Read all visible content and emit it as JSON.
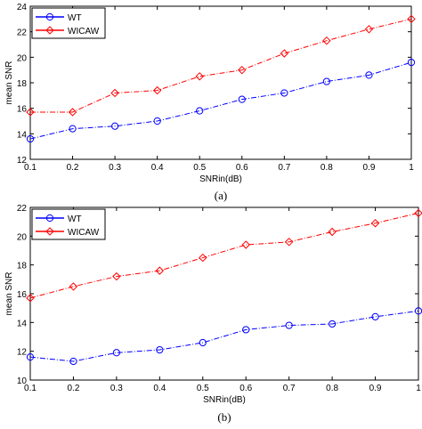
{
  "chart_data": [
    {
      "type": "line",
      "panel_label": "(a)",
      "xlabel": "SNRin(dB)",
      "ylabel": "mean SNR",
      "xlim": [
        0.1,
        1
      ],
      "ylim": [
        12,
        24
      ],
      "x_ticks": [
        "0.1",
        "0.2",
        "0.3",
        "0.4",
        "0.5",
        "0.6",
        "0.7",
        "0.8",
        "0.9",
        "1"
      ],
      "y_ticks": [
        "12",
        "14",
        "16",
        "18",
        "20",
        "22",
        "24"
      ],
      "x": [
        0.1,
        0.2,
        0.3,
        0.4,
        0.5,
        0.6,
        0.7,
        0.8,
        0.9,
        1.0
      ],
      "legend_position": "top-left",
      "series": [
        {
          "name": "WT",
          "color": "#0000ff",
          "marker": "circle",
          "line": "dash-dot",
          "values": [
            13.6,
            14.4,
            14.6,
            15.0,
            15.8,
            16.7,
            17.2,
            18.1,
            18.6,
            19.6
          ]
        },
        {
          "name": "WICAW",
          "color": "#ff0000",
          "marker": "diamond",
          "line": "dash-dot",
          "values": [
            15.7,
            15.7,
            17.2,
            17.4,
            18.5,
            19.0,
            20.3,
            21.3,
            22.2,
            23.0
          ]
        }
      ]
    },
    {
      "type": "line",
      "panel_label": "(b)",
      "xlabel": "SNRin(dB)",
      "ylabel": "mean SNR",
      "xlim": [
        0.1,
        1
      ],
      "ylim": [
        10,
        22
      ],
      "x_ticks": [
        "0.1",
        "0.2",
        "0.3",
        "0.4",
        "0.5",
        "0.6",
        "0.7",
        "0.8",
        "0.9",
        "1"
      ],
      "y_ticks": [
        "10",
        "12",
        "14",
        "16",
        "18",
        "20",
        "22"
      ],
      "x": [
        0.1,
        0.2,
        0.3,
        0.4,
        0.5,
        0.6,
        0.7,
        0.8,
        0.9,
        1.0
      ],
      "legend_position": "top-left",
      "series": [
        {
          "name": "WT",
          "color": "#0000ff",
          "marker": "circle",
          "line": "dash-dot",
          "values": [
            11.6,
            11.3,
            11.9,
            12.1,
            12.6,
            13.5,
            13.8,
            13.9,
            14.4,
            14.8
          ]
        },
        {
          "name": "WICAW",
          "color": "#ff0000",
          "marker": "diamond",
          "line": "dash-dot",
          "values": [
            15.7,
            16.5,
            17.2,
            17.6,
            18.5,
            19.4,
            19.6,
            20.3,
            20.9,
            21.6
          ]
        }
      ]
    }
  ]
}
